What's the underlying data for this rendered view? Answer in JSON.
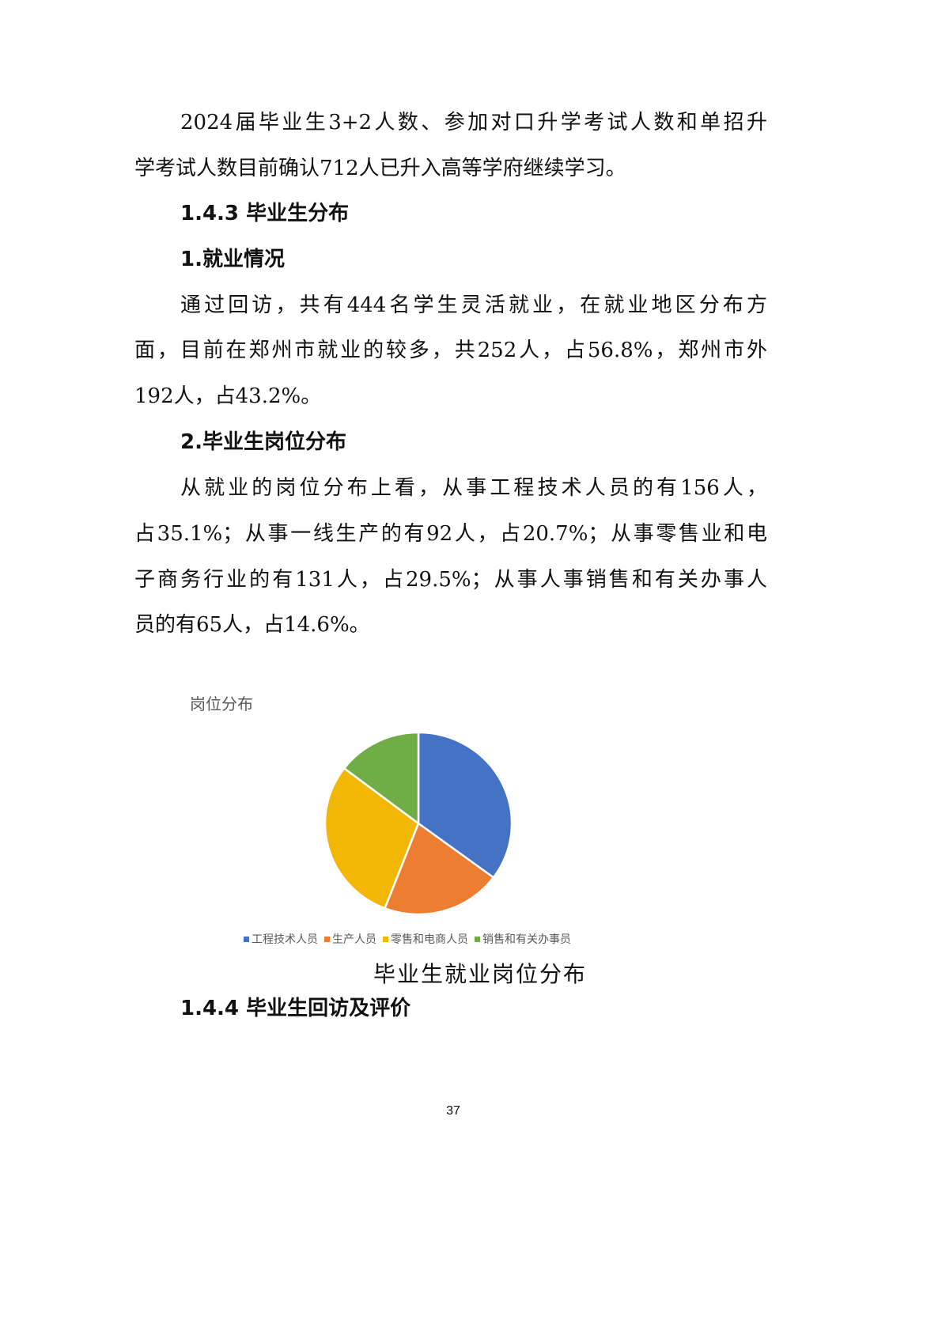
{
  "p1": [
    "2024届毕业生3+2人数、参加对口升学考试人数和单招升",
    "学考试人数目前确认712人已升入高等学府继续学习。"
  ],
  "h1": "1.4.3 毕业生分布",
  "h2": "1.就业情况",
  "p2": [
    "通过回访，共有444名学生灵活就业，在就业地区分布方",
    "面，目前在郑州市就业的较多，共252人，占56.8%，郑州市外",
    "192人，占43.2%。"
  ],
  "h3": "2.毕业生岗位分布",
  "p3": [
    "从就业的岗位分布上看，从事工程技术人员的有156人，",
    "占35.1%；从事一线生产的有92人，占20.7%；从事零售业和电",
    "子商务行业的有131人，占29.5%；从事人事销售和有关办事人",
    "员的有65人，占14.6%。"
  ],
  "chart_data": {
    "type": "pie",
    "title": "岗位分布",
    "categories": [
      "工程技术人员",
      "生产人员",
      "零售和电商人员",
      "销售和有关办事员"
    ],
    "values": [
      156,
      92,
      131,
      65
    ],
    "colors": [
      "#4472C4",
      "#ED7D31",
      "#F2B705",
      "#70AD47"
    ],
    "legend": "bottom",
    "start": "top-clockwise"
  },
  "caption": "毕业生就业岗位分布",
  "h4": "1.4.4 毕业生回访及评价",
  "page_number": "37"
}
